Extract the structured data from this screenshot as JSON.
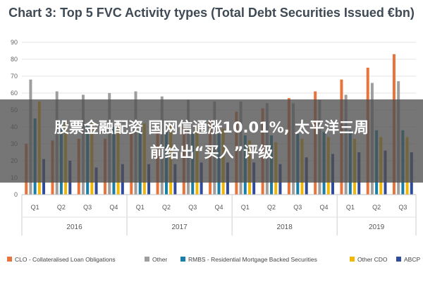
{
  "chart_data": {
    "type": "bar",
    "title": "Chart 3: Top 5 FVC Activity types (Total Debt Securities Issued €bn)",
    "xlabel": "",
    "ylabel": "",
    "ylim": [
      0,
      90
    ],
    "yticks": [
      0,
      10,
      20,
      30,
      40,
      50,
      60,
      70,
      80,
      90
    ],
    "grid": true,
    "legend_position": "bottom",
    "categories": [
      "Q1",
      "Q2",
      "Q3",
      "Q4",
      "Q1",
      "Q2",
      "Q3",
      "Q4",
      "Q1",
      "Q2",
      "Q3",
      "Q4",
      "Q1",
      "Q2",
      "Q3"
    ],
    "years": [
      {
        "label": "2016",
        "quarters": 4
      },
      {
        "label": "2017",
        "quarters": 4
      },
      {
        "label": "2018",
        "quarters": 4
      },
      {
        "label": "2019",
        "quarters": 3
      }
    ],
    "series": [
      {
        "name": "CLO - Collateralised Loan Obligations",
        "color": "#e8743b",
        "values": [
          30,
          32,
          33,
          33,
          36,
          38,
          40,
          44,
          49,
          51,
          57,
          61,
          68,
          75,
          83
        ]
      },
      {
        "name": "Other",
        "color": "#9e9e9e",
        "values": [
          68,
          61,
          59,
          60,
          61,
          58,
          56,
          55,
          55,
          54,
          54,
          56,
          59,
          66,
          67
        ]
      },
      {
        "name": "RMBS - Residential Mortgage Backed Securities",
        "color": "#1a7fa8",
        "values": [
          45,
          44,
          42,
          40,
          38,
          38,
          36,
          36,
          35,
          35,
          36,
          37,
          38,
          38,
          38
        ]
      },
      {
        "name": "Other CDO",
        "color": "#f2b705",
        "values": [
          55,
          43,
          42,
          43,
          42,
          41,
          40,
          39,
          32,
          31,
          33,
          34,
          33,
          34,
          34
        ]
      },
      {
        "name": "ABCP",
        "color": "#2f4b9a",
        "values": [
          21,
          20,
          16,
          18,
          18,
          18,
          19,
          19,
          19,
          18,
          22,
          24,
          25,
          26,
          25
        ]
      }
    ]
  },
  "overlay": {
    "line1": "股票金融配资 国网信通涨10.01%, 太平洋三周",
    "line2": "前给出“买入”评级"
  }
}
